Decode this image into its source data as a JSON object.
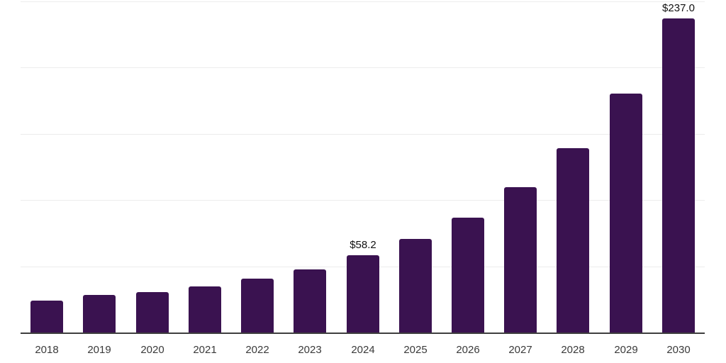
{
  "chart_data": {
    "type": "bar",
    "title": "",
    "xlabel": "",
    "ylabel": "",
    "categories": [
      "2018",
      "2019",
      "2020",
      "2021",
      "2022",
      "2023",
      "2024",
      "2025",
      "2026",
      "2027",
      "2028",
      "2029",
      "2030"
    ],
    "values": [
      24.0,
      28.1,
      30.6,
      34.8,
      40.6,
      47.8,
      58.2,
      70.9,
      86.8,
      109.5,
      139.4,
      180.4,
      237.0
    ],
    "data_labels": [
      "",
      "",
      "",
      "",
      "",
      "",
      "$58.2",
      "",
      "",
      "",
      "",
      "",
      "$237.0"
    ],
    "ylim": [
      0,
      251
    ],
    "y_gridlines": [
      50,
      100,
      150,
      200,
      250
    ],
    "y_tick_labels_shown": false,
    "grid": "horizontal",
    "legend": "none",
    "colors": {
      "bar": "#3a1250",
      "axis_line": "#3f3f3f",
      "gridline": "#ececec",
      "tick_label": "#3a3a3a",
      "value_label": "#111111",
      "background": "#ffffff"
    }
  }
}
